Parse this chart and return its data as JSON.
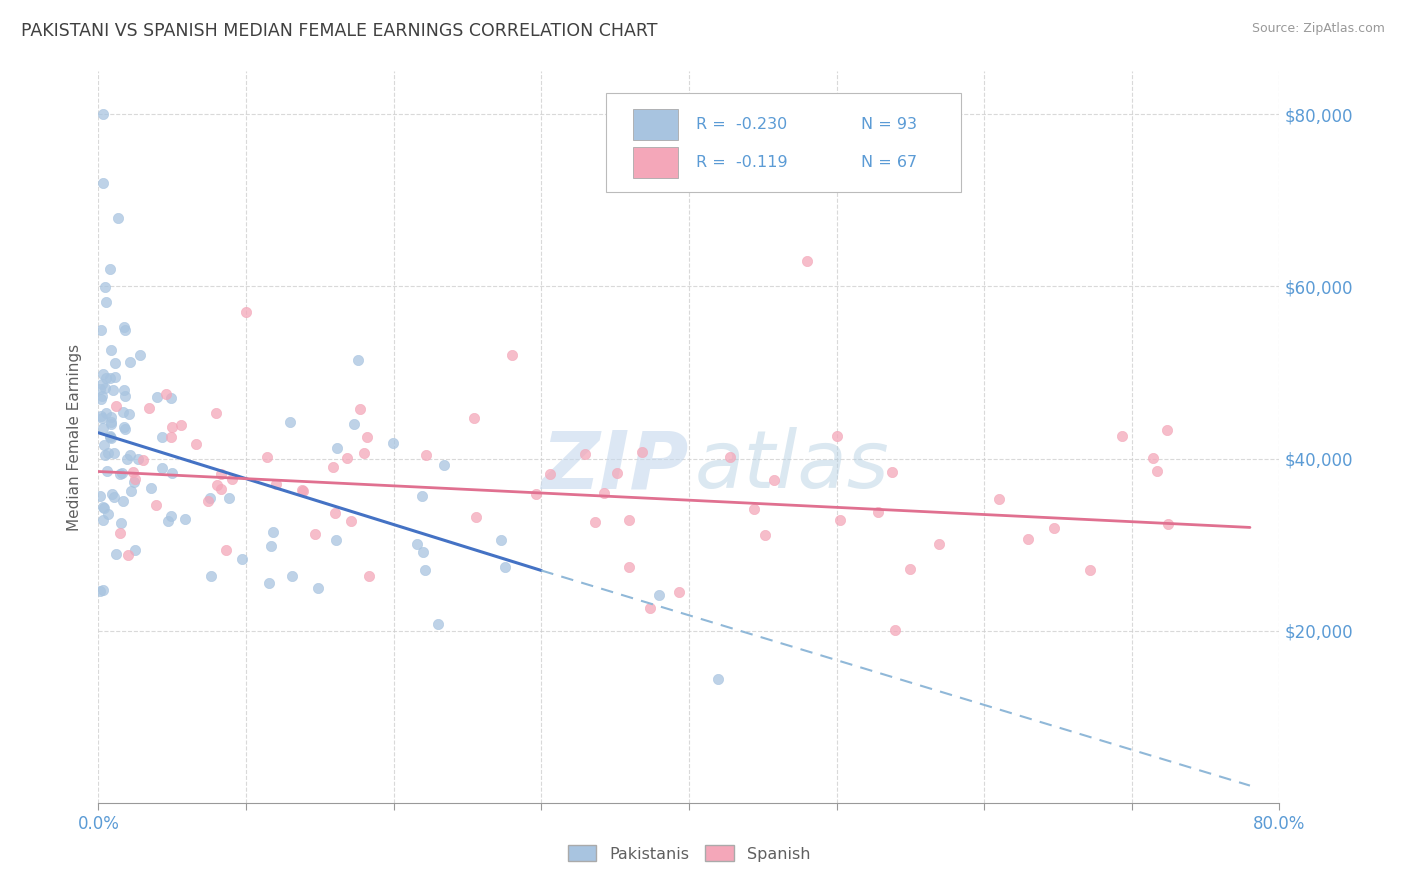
{
  "title": "PAKISTANI VS SPANISH MEDIAN FEMALE EARNINGS CORRELATION CHART",
  "source_text": "Source: ZipAtlas.com",
  "ylabel": "Median Female Earnings",
  "watermark_zip": "ZIP",
  "watermark_atlas": "atlas",
  "xlim": [
    0.0,
    0.8
  ],
  "ylim": [
    0,
    85000
  ],
  "yticks": [
    20000,
    40000,
    60000,
    80000
  ],
  "ytick_labels": [
    "$20,000",
    "$40,000",
    "$60,000",
    "$80,000"
  ],
  "xticks_major": [
    0.0,
    0.8
  ],
  "xticks_minor": [
    0.1,
    0.2,
    0.3,
    0.4,
    0.5,
    0.6,
    0.7
  ],
  "xtick_labels_major": [
    "0.0%",
    "80.0%"
  ],
  "pakistani_color": "#a8c4e0",
  "spanish_color": "#f4a7b9",
  "trend_pakistani_color": "#4472c4",
  "trend_spanish_color": "#e07090",
  "trend_dashed_color": "#90b8d8",
  "title_color": "#404040",
  "axis_label_color": "#606060",
  "tick_color": "#5b9bd5",
  "grid_color": "#d0d0d0",
  "legend_r1": "R =  -0.230",
  "legend_n1": "N = 93",
  "legend_r2": "R =  -0.119",
  "legend_n2": "N = 67",
  "legend_label1": "Pakistanis",
  "legend_label2": "Spanish",
  "pak_trend_x": [
    0.0,
    0.3
  ],
  "pak_trend_y": [
    43000,
    27000
  ],
  "dash_trend_x": [
    0.3,
    0.78
  ],
  "dash_trend_y": [
    27000,
    2000
  ],
  "spa_trend_x": [
    0.0,
    0.78
  ],
  "spa_trend_y": [
    38500,
    32000
  ],
  "background_color": "#ffffff"
}
